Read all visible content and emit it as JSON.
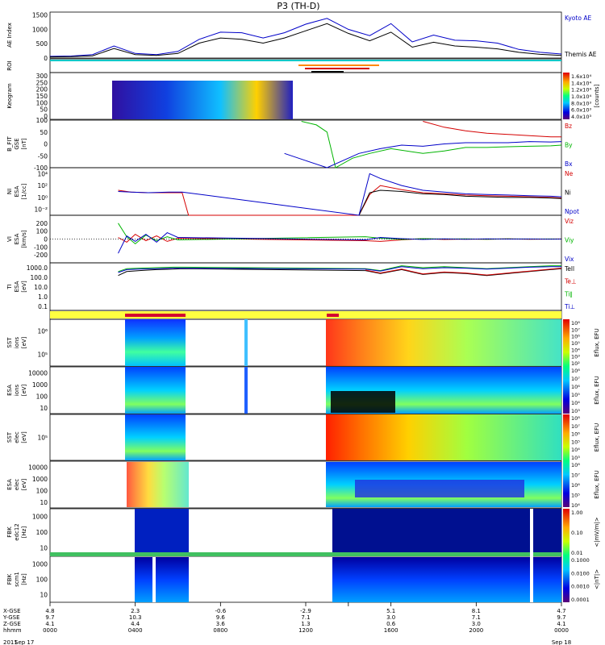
{
  "title": "P3 (TH-D)",
  "colors": {
    "blue": "#0000c8",
    "red": "#d40000",
    "green": "#00b400",
    "black": "#000000"
  },
  "chart_data": [
    {
      "type": "line",
      "panel": "ae",
      "ylabel": "AE Index",
      "ylim": [
        0,
        1600
      ],
      "yticks": [
        "1500",
        "1000",
        "500",
        "0"
      ],
      "ytick_values": [
        1500,
        1000,
        500,
        0
      ],
      "series": [
        {
          "name": "Kyoto AE",
          "color": "#0000c8",
          "x": [
            0,
            1,
            2,
            3,
            4,
            5,
            6,
            7,
            8,
            9,
            10,
            11,
            12,
            13,
            14,
            15,
            16,
            17,
            18,
            19,
            20,
            21,
            22,
            23,
            24
          ],
          "y": [
            60,
            70,
            120,
            420,
            160,
            120,
            230,
            650,
            900,
            880,
            700,
            880,
            1180,
            1380,
            1000,
            780,
            1200,
            560,
            800,
            620,
            600,
            520,
            300,
            200,
            140
          ]
        },
        {
          "name": "Themis AE",
          "color": "#000000",
          "x": [
            0,
            1,
            2,
            3,
            4,
            5,
            6,
            7,
            8,
            9,
            10,
            11,
            12,
            13,
            14,
            15,
            16,
            17,
            18,
            19,
            20,
            21,
            22,
            23,
            24
          ],
          "y": [
            40,
            50,
            80,
            330,
            120,
            90,
            160,
            520,
            700,
            650,
            520,
            700,
            950,
            1200,
            860,
            600,
            900,
            380,
            550,
            420,
            380,
            320,
            200,
            130,
            90
          ]
        }
      ]
    },
    {
      "type": "heatmap",
      "panel": "roi",
      "ylabel": "ROI"
    },
    {
      "type": "heatmap",
      "panel": "keogram",
      "ylabel": "Keogram",
      "yticks": [
        "300",
        "250",
        "200",
        "150",
        "100",
        "50",
        "0"
      ],
      "colorbar_ticks": [
        "1.6x10⁴",
        "1.4x10⁴",
        "1.2x10⁴",
        "1.0x10⁴",
        "8.0x10³",
        "6.0x10³",
        "4.0x10³"
      ],
      "colorbar_label": "[counts]"
    },
    {
      "type": "line",
      "panel": "bfit",
      "ylabel": "B_FIT",
      "ysub": "GSE",
      "yunit": "[nT]",
      "ylim": [
        -100,
        100
      ],
      "yticks": [
        "100",
        "50",
        "0",
        "-50",
        "-100"
      ],
      "ytick_values": [
        100,
        50,
        0,
        -50,
        -100
      ],
      "series": [
        {
          "name": "Bz",
          "color": "#d40000",
          "x": [
            17.5,
            18.5,
            19.5,
            20.5,
            21.5,
            22.5,
            23.5,
            24
          ],
          "y": [
            95,
            70,
            55,
            45,
            40,
            35,
            30,
            30
          ]
        },
        {
          "name": "By",
          "color": "#00b400",
          "x": [
            11.8,
            12.5,
            13,
            13.4,
            14.2,
            15,
            16,
            17.5,
            18.5,
            19.5,
            20.5,
            21.5,
            22.5,
            23.5,
            24
          ],
          "y": [
            95,
            80,
            50,
            -100,
            -60,
            -40,
            -20,
            -40,
            -30,
            -15,
            -15,
            -12,
            -10,
            -8,
            -5
          ]
        },
        {
          "name": "Bx",
          "color": "#0000c8",
          "x": [
            11,
            12,
            13,
            14.5,
            15.5,
            16.5,
            17.5,
            18.5,
            19.5,
            20.5,
            21.5,
            22.5,
            23.5,
            24
          ],
          "y": [
            -40,
            -70,
            -100,
            -40,
            -20,
            -5,
            -10,
            0,
            5,
            5,
            5,
            10,
            8,
            10
          ]
        }
      ]
    },
    {
      "type": "line",
      "panel": "ni",
      "ylabel": "NI",
      "ysub": "ESA",
      "yunit": "[1/cc]",
      "yticks": [
        "10⁴",
        "10²",
        "10⁰",
        "10⁻²"
      ],
      "ytick_values": [
        4,
        2,
        0,
        -2
      ],
      "ylim": [
        -3,
        5
      ],
      "series": [
        {
          "name": "Ne",
          "color": "#d40000",
          "x": [
            3.2,
            3.8,
            4.6,
            5.6,
            6.2,
            6.5,
            14.5,
            15,
            15.5,
            16.5,
            17.5,
            18.5,
            19.5,
            20.5,
            21.5,
            22.5,
            23.5,
            24
          ],
          "y": [
            1.2,
            0.9,
            0.8,
            0.8,
            0.8,
            -3,
            -3,
            0.5,
            2.0,
            1.3,
            0.8,
            0.6,
            0.4,
            0.3,
            0.2,
            0.1,
            0.0,
            -0.1
          ]
        },
        {
          "name": "Ni",
          "color": "#000000",
          "x": [
            14.5,
            15,
            15.5,
            16.5,
            17.5,
            18.5,
            19.5,
            20.5,
            21.5,
            22.5,
            23.5,
            24
          ],
          "y": [
            -3,
            0.8,
            1.2,
            1.0,
            0.6,
            0.5,
            0.2,
            0.1,
            0.0,
            0.0,
            -0.1,
            -0.2
          ]
        },
        {
          "name": "Npot",
          "color": "#0000c8",
          "x": [
            3.2,
            3.8,
            4.6,
            5.6,
            6.2,
            14.5,
            15,
            15.5,
            16.5,
            17.5,
            18.5,
            19.5,
            20.5,
            21.5,
            22.5,
            23.5,
            24
          ],
          "y": [
            1.0,
            0.9,
            0.8,
            0.9,
            0.9,
            -3,
            4.0,
            3.2,
            2.0,
            1.2,
            0.9,
            0.6,
            0.5,
            0.4,
            0.3,
            0.2,
            0.1
          ]
        }
      ]
    },
    {
      "type": "line",
      "panel": "vi",
      "ylabel": "VI",
      "ysub": "ESA",
      "yunit": "[km/s]",
      "ylim": [
        -300,
        300
      ],
      "yticks": [
        "200",
        "100",
        "0",
        "-100",
        "-200"
      ],
      "ytick_values": [
        200,
        100,
        0,
        -100,
        -200
      ],
      "series": [
        {
          "name": "Viz",
          "color": "#d40000",
          "x": [
            3.2,
            3.6,
            4.0,
            4.5,
            5.0,
            5.5,
            6.0,
            14.8,
            15.5,
            16.5,
            17.5,
            18.5,
            19.5,
            20.5,
            21.5,
            22.5,
            23.5,
            24
          ],
          "y": [
            20,
            -40,
            60,
            -20,
            40,
            -30,
            10,
            -20,
            -30,
            -10,
            5,
            -5,
            0,
            -3,
            2,
            -2,
            0,
            1
          ]
        },
        {
          "name": "Viy",
          "color": "#00b400",
          "x": [
            3.2,
            3.6,
            4.0,
            4.5,
            5.0,
            5.5,
            6.0,
            14.8,
            15.5,
            16.5,
            17.5,
            18.5,
            19.5,
            20.5,
            21.5,
            22.5,
            23.5,
            24
          ],
          "y": [
            200,
            30,
            -60,
            50,
            -20,
            30,
            -10,
            30,
            10,
            -5,
            5,
            0,
            3,
            -2,
            2,
            0,
            1,
            0
          ]
        },
        {
          "name": "Vix",
          "color": "#0000c8",
          "x": [
            3.2,
            3.6,
            4.0,
            4.5,
            5.0,
            5.5,
            6.0,
            14.8,
            15.5,
            16.5,
            17.5,
            18.5,
            19.5,
            20.5,
            21.5,
            22.5,
            23.5,
            24
          ],
          "y": [
            -180,
            40,
            -30,
            60,
            -40,
            80,
            20,
            -10,
            20,
            5,
            -5,
            3,
            -2,
            2,
            0,
            1,
            -1,
            0
          ]
        }
      ]
    },
    {
      "type": "line",
      "panel": "ti",
      "ylabel": "TI",
      "ysub": "ESA",
      "yunit": "[eV]",
      "yticks": [
        "1000.0",
        "100.0",
        "10.0",
        "1.0",
        "0.1"
      ],
      "ytick_values": [
        3,
        2,
        1,
        0,
        -1
      ],
      "ylim": [
        -1.4,
        3.5
      ],
      "series": [
        {
          "name": "Tell",
          "color": "#000000",
          "x": [
            3.2,
            3.6,
            4.2,
            5.0,
            5.8,
            6.2,
            14.8,
            15.5,
            16.5,
            17.5,
            18.5,
            19.5,
            20.5,
            21.5,
            22.5,
            23.5,
            24
          ],
          "y": [
            2.2,
            2.6,
            2.7,
            2.8,
            2.85,
            2.9,
            2.7,
            2.4,
            2.8,
            2.3,
            2.5,
            2.4,
            2.2,
            2.4,
            2.6,
            2.8,
            2.9
          ]
        },
        {
          "name": "Te⊥",
          "color": "#d40000",
          "x": [
            14.8,
            15.5,
            16.5,
            17.5,
            18.5,
            19.5,
            20.5,
            21.5,
            22.5,
            23.5,
            24
          ],
          "y": [
            2.75,
            2.45,
            2.85,
            2.35,
            2.55,
            2.45,
            2.25,
            2.45,
            2.65,
            2.85,
            2.95
          ]
        },
        {
          "name": "Ti∥",
          "color": "#00b400",
          "x": [
            3.2,
            3.6,
            4.2,
            5.0,
            5.8,
            6.2,
            14.8,
            15.5,
            16.5,
            17.5,
            18.5,
            19.5,
            20.5,
            21.5,
            22.5,
            23.5,
            24
          ],
          "y": [
            2.6,
            2.9,
            2.95,
            3.0,
            3.05,
            3.05,
            2.9,
            2.7,
            3.2,
            3.0,
            3.1,
            3.0,
            2.9,
            3.0,
            3.1,
            3.2,
            3.2
          ]
        },
        {
          "name": "Ti⊥",
          "color": "#0000c8",
          "x": [
            3.2,
            3.6,
            4.2,
            5.0,
            5.8,
            6.2,
            14.8,
            15.5,
            16.5,
            17.5,
            18.5,
            19.5,
            20.5,
            21.5,
            22.5,
            23.5,
            24
          ],
          "y": [
            2.5,
            2.8,
            2.85,
            2.9,
            2.95,
            2.95,
            2.85,
            2.65,
            3.1,
            2.9,
            3.0,
            2.95,
            2.85,
            2.95,
            3.05,
            3.1,
            3.1
          ]
        }
      ]
    },
    {
      "type": "heatmap",
      "panel": "sst_i",
      "ylabel": "SST",
      "ysub": "ions",
      "yunit": "[eV]",
      "yticks": [
        "10⁶",
        "10⁵"
      ],
      "colorbar_ticks": [
        "10⁸",
        "10⁷",
        "10⁶",
        "10⁵",
        "10⁴",
        "10³",
        "10²"
      ],
      "colorbar_label": "Eflux, EFU"
    },
    {
      "type": "heatmap",
      "panel": "esa_i",
      "ylabel": "ESA",
      "ysub": "ions",
      "yunit": "[eV]",
      "yticks": [
        "10000",
        "1000",
        "100",
        "10"
      ],
      "colorbar_ticks": [
        "10⁸",
        "10⁷",
        "10⁶",
        "10⁵",
        "10⁴",
        "10³"
      ],
      "colorbar_label": "Eflux, EFU"
    },
    {
      "type": "heatmap",
      "panel": "sst_e",
      "ylabel": "SST",
      "ysub": "elec",
      "yunit": "[eV]",
      "yticks": [
        "10⁵"
      ],
      "colorbar_ticks": [
        "10⁸",
        "10⁷",
        "10⁶",
        "10⁵",
        "10⁴",
        "10³"
      ],
      "colorbar_label": "Eflux, EFU"
    },
    {
      "type": "heatmap",
      "panel": "esa_e",
      "ylabel": "ESA",
      "ysub": "elec",
      "yunit": "[eV]",
      "yticks": [
        "10000",
        "1000",
        "100",
        "10"
      ],
      "colorbar_ticks": [
        "10⁸",
        "10⁷",
        "10⁶",
        "10⁵",
        "10⁴"
      ],
      "colorbar_label": "Eflux, EFU"
    },
    {
      "type": "heatmap",
      "panel": "fbk_e",
      "ylabel": "FBK",
      "ysub": "edc12",
      "yunit": "[Hz]",
      "yticks": [
        "1000",
        "100",
        "10"
      ],
      "colorbar_ticks": [
        "1.00",
        "0.10",
        "0.01"
      ],
      "colorbar_label": "<|mV/m|>"
    },
    {
      "type": "heatmap",
      "panel": "fbk_b",
      "ylabel": "FBK",
      "ysub": "scm1",
      "yunit": "[Hz]",
      "yticks": [
        "1000",
        "100",
        "10"
      ],
      "colorbar_ticks": [
        "0.1000",
        "0.0100",
        "0.0010",
        "0.0001"
      ],
      "colorbar_label": "<|nT|>"
    }
  ],
  "xaxis": {
    "rows": [
      {
        "label": "X-GSE",
        "values": [
          "4.8",
          "2.3",
          "-0.6",
          "-2.9",
          "",
          "5.1",
          "8.1",
          "4.7"
        ]
      },
      {
        "label": "Y-GSE",
        "values": [
          "9.7",
          "10.3",
          "9.6",
          "7.1",
          "",
          "3.0",
          "7.1",
          "9.7"
        ]
      },
      {
        "label": "Z-GSE",
        "values": [
          "4.1",
          "4.4",
          "3.6",
          "1.3",
          "",
          "0.6",
          "3.0",
          "4.1"
        ]
      },
      {
        "label": "hhmm",
        "values": [
          "0000",
          "0400",
          "0800",
          "1200",
          "",
          "1600",
          "2000",
          "0000"
        ]
      }
    ],
    "tick_hours": [
      0,
      4,
      8,
      12,
      14,
      16,
      20,
      24
    ],
    "date_start": "2011 Sep 17",
    "date_end": "Sep 18",
    "year": "2011",
    "start_day": "Sep 17"
  }
}
